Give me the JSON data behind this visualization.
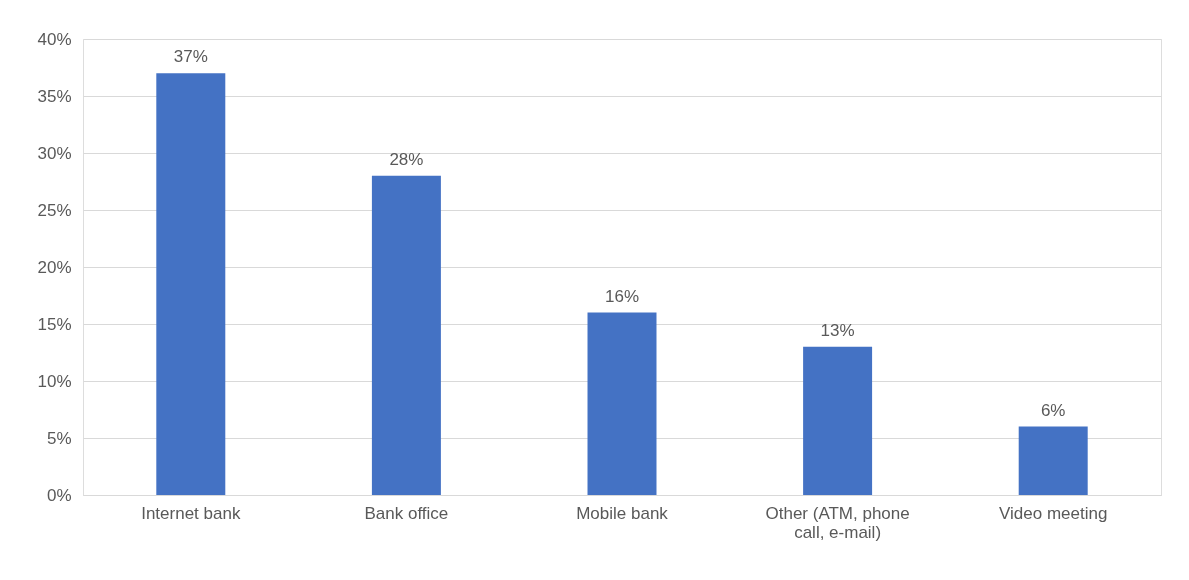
{
  "chart_data": {
    "type": "bar",
    "categories": [
      "Internet bank",
      "Bank office",
      "Mobile bank",
      "Other (ATM, phone call, e-mail)",
      "Video meeting"
    ],
    "values": [
      37,
      28,
      16,
      13,
      6
    ],
    "value_labels": [
      "37%",
      "28%",
      "16%",
      "13%",
      "6%"
    ],
    "color": "#4472c4",
    "ylim": [
      0,
      40
    ],
    "yticks": [
      {
        "value": 0,
        "label": "0%"
      },
      {
        "value": 5,
        "label": "5%"
      },
      {
        "value": 10,
        "label": "10%"
      },
      {
        "value": 15,
        "label": "15%"
      },
      {
        "value": 20,
        "label": "20%"
      },
      {
        "value": 25,
        "label": "25%"
      },
      {
        "value": 30,
        "label": "30%"
      },
      {
        "value": 35,
        "label": "35%"
      },
      {
        "value": 40,
        "label": "40%"
      }
    ],
    "grid": "y"
  }
}
